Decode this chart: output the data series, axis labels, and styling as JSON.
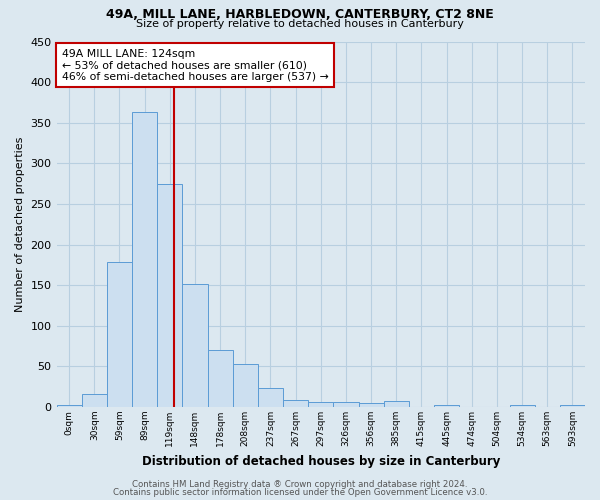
{
  "title1": "49A, MILL LANE, HARBLEDOWN, CANTERBURY, CT2 8NE",
  "title2": "Size of property relative to detached houses in Canterbury",
  "xlabel": "Distribution of detached houses by size in Canterbury",
  "ylabel": "Number of detached properties",
  "footer1": "Contains HM Land Registry data ® Crown copyright and database right 2024.",
  "footer2": "Contains public sector information licensed under the Open Government Licence v3.0.",
  "annotation_line1": "49A MILL LANE: 124sqm",
  "annotation_line2": "← 53% of detached houses are smaller (610)",
  "annotation_line3": "46% of semi-detached houses are larger (537) →",
  "bar_edge_color": "#5b9bd5",
  "bar_face_color": "#ccdff0",
  "red_line_color": "#c00000",
  "annotation_box_edge": "#c00000",
  "grid_color": "#b8cfe0",
  "bg_color": "#dce8f0",
  "categories": [
    "0sqm",
    "30sqm",
    "59sqm",
    "89sqm",
    "119sqm",
    "148sqm",
    "178sqm",
    "208sqm",
    "237sqm",
    "267sqm",
    "297sqm",
    "326sqm",
    "356sqm",
    "385sqm",
    "415sqm",
    "445sqm",
    "474sqm",
    "504sqm",
    "534sqm",
    "563sqm",
    "593sqm"
  ],
  "values": [
    2,
    16,
    178,
    363,
    275,
    151,
    70,
    53,
    23,
    9,
    6,
    6,
    5,
    7,
    0,
    2,
    0,
    0,
    2,
    0,
    3
  ],
  "red_line_x": 4.65,
  "ylim": [
    0,
    450
  ],
  "yticks": [
    0,
    50,
    100,
    150,
    200,
    250,
    300,
    350,
    400,
    450
  ]
}
